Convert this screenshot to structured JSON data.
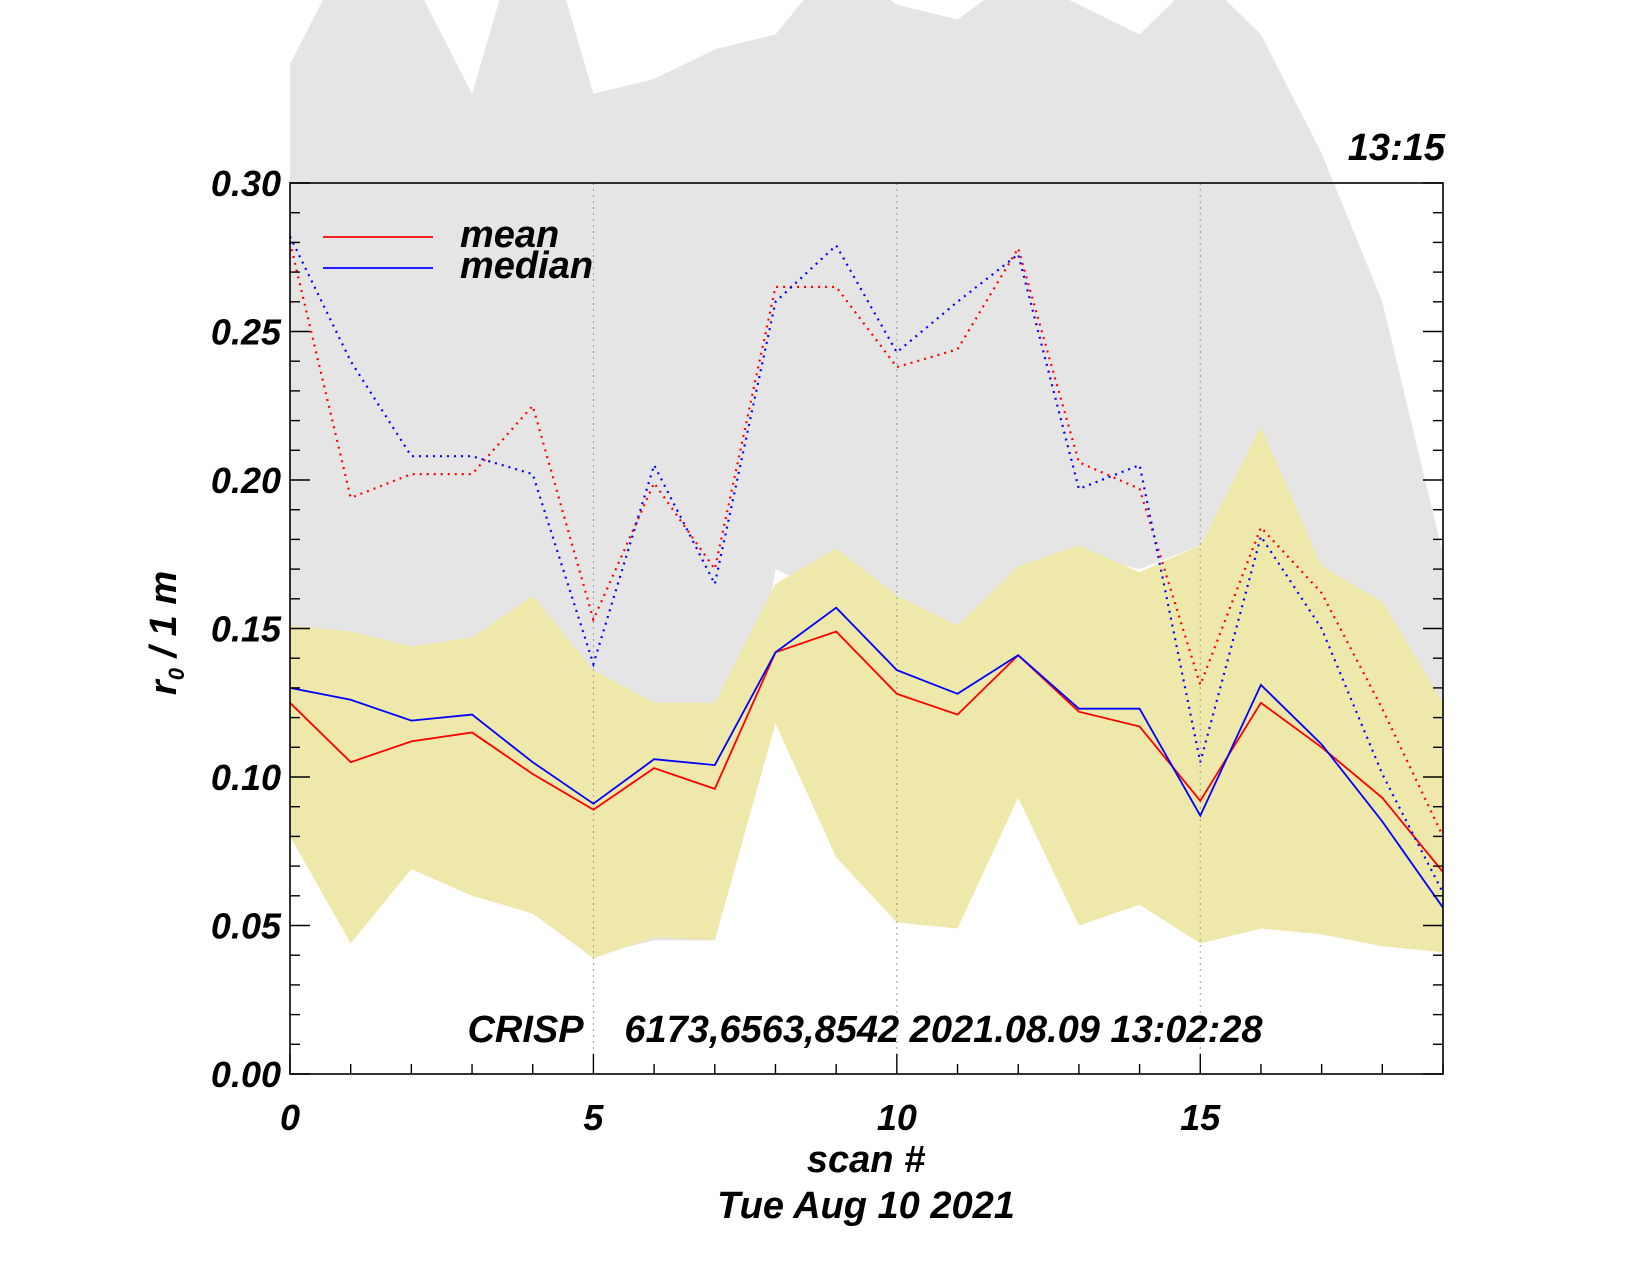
{
  "chart_data": {
    "type": "line",
    "time_label": "13:15",
    "annotation": "CRISP    6173,6563,8542 2021.08.09 13:02:28",
    "xlabel": "scan #",
    "xsublabel": "Tue Aug 10 2021",
    "ylabel_main": "r",
    "ylabel_sub": "0",
    "ylabel_rest": " / 1 m",
    "xlim": [
      0,
      19
    ],
    "ylim": [
      0,
      0.3
    ],
    "x_ticks": [
      0,
      5,
      10,
      15
    ],
    "x_tick_labels": [
      "0",
      "5",
      "10",
      "15"
    ],
    "y_ticks": [
      0,
      0.05,
      0.1,
      0.15,
      0.2,
      0.25,
      0.3
    ],
    "y_tick_labels": [
      "0.00",
      "0.05",
      "0.10",
      "0.15",
      "0.20",
      "0.25",
      "0.30"
    ],
    "x_grid": [
      5,
      10,
      15
    ],
    "legend": [
      {
        "label": "mean",
        "color": "#ff0000"
      },
      {
        "label": "median",
        "color": "#0000ff"
      }
    ],
    "x": [
      0,
      1,
      2,
      3,
      4,
      5,
      6,
      7,
      8,
      9,
      10,
      11,
      12,
      13,
      14,
      15,
      16,
      17,
      18,
      19
    ],
    "gray_band": {
      "color": "#e5e5e5",
      "upper": [
        0.34,
        0.38,
        0.37,
        0.33,
        0.4,
        0.33,
        0.335,
        0.345,
        0.35,
        0.375,
        0.36,
        0.355,
        0.37,
        0.36,
        0.35,
        0.37,
        0.35,
        0.31,
        0.26,
        0.175
      ],
      "lower": [
        0.08,
        0.045,
        0.07,
        0.06,
        0.055,
        0.04,
        0.045,
        0.045,
        0.17,
        0.16,
        0.16,
        0.15,
        0.17,
        0.175,
        0.17,
        0.178,
        0.17,
        0.15,
        0.12,
        0.115
      ]
    },
    "yellow_band": {
      "color": "#eee8aa",
      "upper": [
        0.151,
        0.149,
        0.144,
        0.147,
        0.161,
        0.136,
        0.125,
        0.125,
        0.165,
        0.177,
        0.161,
        0.151,
        0.171,
        0.178,
        0.169,
        0.178,
        0.218,
        0.171,
        0.159,
        0.125
      ],
      "lower": [
        0.08,
        0.044,
        0.069,
        0.06,
        0.054,
        0.039,
        0.046,
        0.045,
        0.118,
        0.073,
        0.051,
        0.049,
        0.093,
        0.05,
        0.057,
        0.044,
        0.049,
        0.047,
        0.043,
        0.041
      ]
    },
    "series": [
      {
        "name": "mean",
        "color": "#ff0000",
        "style": "solid",
        "values": [
          0.125,
          0.105,
          0.112,
          0.115,
          0.101,
          0.089,
          0.103,
          0.096,
          0.142,
          0.149,
          0.128,
          0.121,
          0.141,
          0.122,
          0.117,
          0.092,
          0.125,
          0.11,
          0.093,
          0.068
        ]
      },
      {
        "name": "median",
        "color": "#0000ff",
        "style": "solid",
        "values": [
          0.13,
          0.126,
          0.119,
          0.121,
          0.105,
          0.091,
          0.106,
          0.104,
          0.142,
          0.157,
          0.136,
          0.128,
          0.141,
          0.123,
          0.123,
          0.087,
          0.131,
          0.111,
          0.085,
          0.056
        ]
      },
      {
        "color": "#ff0000",
        "style": "dotted",
        "values": [
          0.28,
          0.194,
          0.202,
          0.202,
          0.225,
          0.153,
          0.199,
          0.17,
          0.265,
          0.265,
          0.238,
          0.244,
          0.278,
          0.206,
          0.197,
          0.131,
          0.184,
          0.162,
          0.123,
          0.08
        ]
      },
      {
        "color": "#0000ff",
        "style": "dotted",
        "values": [
          0.282,
          0.24,
          0.208,
          0.208,
          0.202,
          0.138,
          0.205,
          0.165,
          0.26,
          0.279,
          0.243,
          0.26,
          0.276,
          0.197,
          0.205,
          0.105,
          0.181,
          0.15,
          0.101,
          0.061
        ]
      }
    ]
  }
}
